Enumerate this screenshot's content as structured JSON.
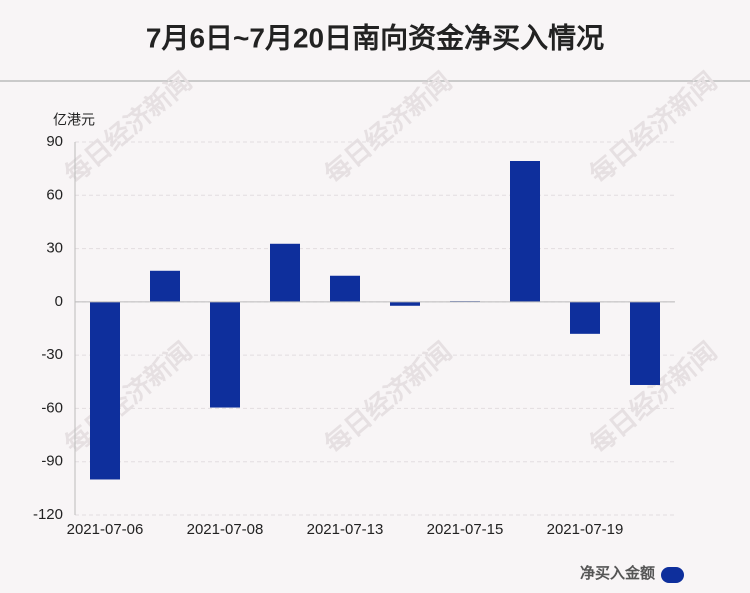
{
  "chart_data": {
    "type": "bar",
    "title": "7月6日~7月20日南向资金净买入情况",
    "y_axis_label": "亿港元",
    "watermark": "每日经济新闻",
    "categories": [
      "2021-07-06",
      null,
      "2021-07-08",
      null,
      "2021-07-13",
      null,
      "2021-07-15",
      null,
      "2021-07-19",
      null
    ],
    "series": [
      {
        "name": "净买入金额",
        "color": "#0e2f9c",
        "values": [
          -100,
          17.5,
          -59.5,
          32.7,
          14.7,
          -2.2,
          0.4,
          79.3,
          -18,
          -46.8
        ]
      }
    ],
    "ylim": [
      -120,
      90
    ],
    "yticks": [
      -120,
      -90,
      -60,
      -30,
      0,
      30,
      60,
      90
    ],
    "grid": true,
    "legend": "bottom-right"
  }
}
